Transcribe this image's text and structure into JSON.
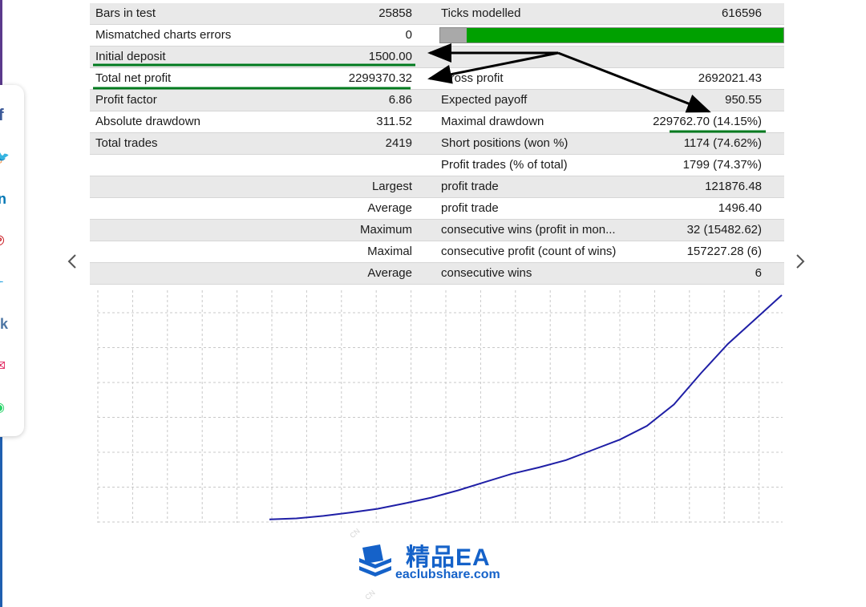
{
  "rows": [
    {
      "label": "Bars in test",
      "value": "25858",
      "label2": "Ticks modelled",
      "value2": "616596"
    },
    {
      "label": "Mismatched charts errors",
      "value": "0",
      "label2": "",
      "value2": ""
    },
    {
      "label": "Initial deposit",
      "value": "1500.00",
      "label2": "",
      "value2": ""
    },
    {
      "label": "Total net profit",
      "value": "2299370.32",
      "label2": "Gross profit",
      "value2": "2692021.43"
    },
    {
      "label": "Profit factor",
      "value": "6.86",
      "label2": "Expected payoff",
      "value2": "950.55"
    },
    {
      "label": "Absolute drawdown",
      "value": "311.52",
      "label2": "Maximal drawdown",
      "value2": "229762.70 (14.15%)"
    },
    {
      "label": "Total trades",
      "value": "2419",
      "label2": "Short positions (won %)",
      "value2": "1174 (74.62%)"
    },
    {
      "label": "",
      "value": "",
      "label2": "Profit trades (% of total)",
      "value2": "1799 (74.37%)"
    },
    {
      "label": "",
      "value": "Largest",
      "label2": "profit trade",
      "value2": "121876.48"
    },
    {
      "label": "",
      "value": "Average",
      "label2": "profit trade",
      "value2": "1496.40"
    },
    {
      "label": "",
      "value": "Maximum",
      "label2": "consecutive wins (profit in mon...",
      "value2": "32 (15482.62)"
    },
    {
      "label": "",
      "value": "Maximal",
      "label2": "consecutive profit (count of wins)",
      "value2": "157227.28 (6)"
    },
    {
      "label": "",
      "value": "Average",
      "label2": "consecutive wins",
      "value2": "6"
    }
  ],
  "modelling_quality_fraction": 0.078,
  "share": [
    {
      "icon": "facebook-icon",
      "glyph": "f",
      "color": "#3b5998"
    },
    {
      "icon": "twitter-icon",
      "glyph": "🐦",
      "color": "#1da1f2"
    },
    {
      "icon": "linkedin-icon",
      "glyph": "in",
      "color": "#0077b5"
    },
    {
      "icon": "pinterest-icon",
      "glyph": "℗",
      "color": "#cb2027"
    },
    {
      "icon": "telegram-icon",
      "glyph": "✈",
      "color": "#2ca5e0"
    },
    {
      "icon": "vk-icon",
      "glyph": "vk",
      "color": "#4c75a3"
    },
    {
      "icon": "email-icon",
      "glyph": "✉",
      "color": "#e0245e"
    },
    {
      "icon": "whatsapp-icon",
      "glyph": "◉",
      "color": "#25d366"
    }
  ],
  "colors": {
    "accent_green": "#00a000",
    "curve": "#1f1fa6",
    "logo": "#1562c9"
  },
  "chart_data": {
    "type": "line",
    "title": "",
    "xlabel": "",
    "ylabel": "",
    "grid": true,
    "series": [
      {
        "values": [
          1500,
          12000,
          38000,
          72000,
          110000,
          165000,
          225000,
          300000,
          385000,
          470000,
          535000,
          610000,
          715000,
          820000,
          960000,
          1180000,
          1500000,
          1800000,
          2050000,
          2300870
        ]
      }
    ]
  },
  "watermark": {
    "title": "精品EA",
    "site": "eaclubshare.com"
  }
}
